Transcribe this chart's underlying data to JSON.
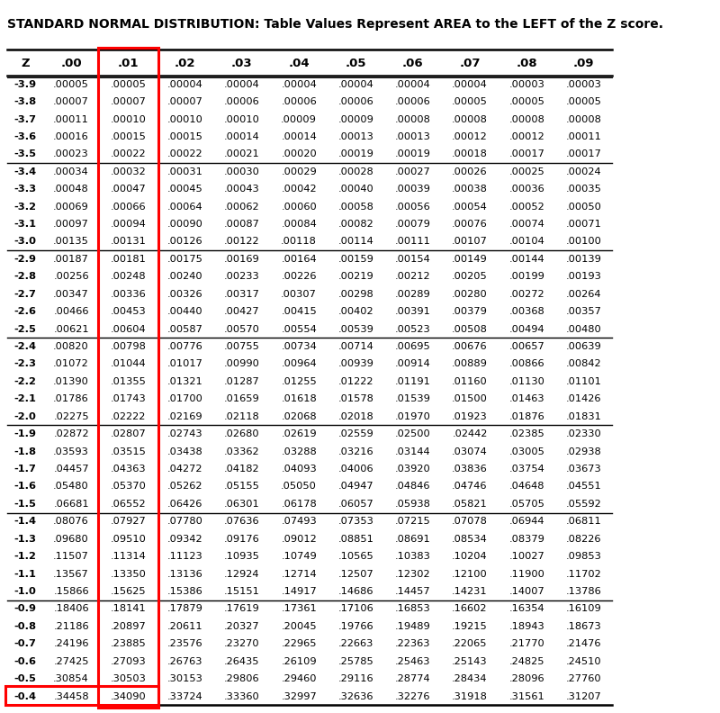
{
  "title": "STANDARD NORMAL DISTRIBUTION: Table Values Represent AREA to the LEFT of the Z score.",
  "columns": [
    "Z",
    ".00",
    ".01",
    ".02",
    ".03",
    ".04",
    ".05",
    ".06",
    ".07",
    ".08",
    ".09"
  ],
  "rows": [
    [
      "-3.9",
      ".00005",
      ".00005",
      ".00004",
      ".00004",
      ".00004",
      ".00004",
      ".00004",
      ".00004",
      ".00003",
      ".00003"
    ],
    [
      "-3.8",
      ".00007",
      ".00007",
      ".00007",
      ".00006",
      ".00006",
      ".00006",
      ".00006",
      ".00005",
      ".00005",
      ".00005"
    ],
    [
      "-3.7",
      ".00011",
      ".00010",
      ".00010",
      ".00010",
      ".00009",
      ".00009",
      ".00008",
      ".00008",
      ".00008",
      ".00008"
    ],
    [
      "-3.6",
      ".00016",
      ".00015",
      ".00015",
      ".00014",
      ".00014",
      ".00013",
      ".00013",
      ".00012",
      ".00012",
      ".00011"
    ],
    [
      "-3.5",
      ".00023",
      ".00022",
      ".00022",
      ".00021",
      ".00020",
      ".00019",
      ".00019",
      ".00018",
      ".00017",
      ".00017"
    ],
    [
      "-3.4",
      ".00034",
      ".00032",
      ".00031",
      ".00030",
      ".00029",
      ".00028",
      ".00027",
      ".00026",
      ".00025",
      ".00024"
    ],
    [
      "-3.3",
      ".00048",
      ".00047",
      ".00045",
      ".00043",
      ".00042",
      ".00040",
      ".00039",
      ".00038",
      ".00036",
      ".00035"
    ],
    [
      "-3.2",
      ".00069",
      ".00066",
      ".00064",
      ".00062",
      ".00060",
      ".00058",
      ".00056",
      ".00054",
      ".00052",
      ".00050"
    ],
    [
      "-3.1",
      ".00097",
      ".00094",
      ".00090",
      ".00087",
      ".00084",
      ".00082",
      ".00079",
      ".00076",
      ".00074",
      ".00071"
    ],
    [
      "-3.0",
      ".00135",
      ".00131",
      ".00126",
      ".00122",
      ".00118",
      ".00114",
      ".00111",
      ".00107",
      ".00104",
      ".00100"
    ],
    [
      "-2.9",
      ".00187",
      ".00181",
      ".00175",
      ".00169",
      ".00164",
      ".00159",
      ".00154",
      ".00149",
      ".00144",
      ".00139"
    ],
    [
      "-2.8",
      ".00256",
      ".00248",
      ".00240",
      ".00233",
      ".00226",
      ".00219",
      ".00212",
      ".00205",
      ".00199",
      ".00193"
    ],
    [
      "-2.7",
      ".00347",
      ".00336",
      ".00326",
      ".00317",
      ".00307",
      ".00298",
      ".00289",
      ".00280",
      ".00272",
      ".00264"
    ],
    [
      "-2.6",
      ".00466",
      ".00453",
      ".00440",
      ".00427",
      ".00415",
      ".00402",
      ".00391",
      ".00379",
      ".00368",
      ".00357"
    ],
    [
      "-2.5",
      ".00621",
      ".00604",
      ".00587",
      ".00570",
      ".00554",
      ".00539",
      ".00523",
      ".00508",
      ".00494",
      ".00480"
    ],
    [
      "-2.4",
      ".00820",
      ".00798",
      ".00776",
      ".00755",
      ".00734",
      ".00714",
      ".00695",
      ".00676",
      ".00657",
      ".00639"
    ],
    [
      "-2.3",
      ".01072",
      ".01044",
      ".01017",
      ".00990",
      ".00964",
      ".00939",
      ".00914",
      ".00889",
      ".00866",
      ".00842"
    ],
    [
      "-2.2",
      ".01390",
      ".01355",
      ".01321",
      ".01287",
      ".01255",
      ".01222",
      ".01191",
      ".01160",
      ".01130",
      ".01101"
    ],
    [
      "-2.1",
      ".01786",
      ".01743",
      ".01700",
      ".01659",
      ".01618",
      ".01578",
      ".01539",
      ".01500",
      ".01463",
      ".01426"
    ],
    [
      "-2.0",
      ".02275",
      ".02222",
      ".02169",
      ".02118",
      ".02068",
      ".02018",
      ".01970",
      ".01923",
      ".01876",
      ".01831"
    ],
    [
      "-1.9",
      ".02872",
      ".02807",
      ".02743",
      ".02680",
      ".02619",
      ".02559",
      ".02500",
      ".02442",
      ".02385",
      ".02330"
    ],
    [
      "-1.8",
      ".03593",
      ".03515",
      ".03438",
      ".03362",
      ".03288",
      ".03216",
      ".03144",
      ".03074",
      ".03005",
      ".02938"
    ],
    [
      "-1.7",
      ".04457",
      ".04363",
      ".04272",
      ".04182",
      ".04093",
      ".04006",
      ".03920",
      ".03836",
      ".03754",
      ".03673"
    ],
    [
      "-1.6",
      ".05480",
      ".05370",
      ".05262",
      ".05155",
      ".05050",
      ".04947",
      ".04846",
      ".04746",
      ".04648",
      ".04551"
    ],
    [
      "-1.5",
      ".06681",
      ".06552",
      ".06426",
      ".06301",
      ".06178",
      ".06057",
      ".05938",
      ".05821",
      ".05705",
      ".05592"
    ],
    [
      "-1.4",
      ".08076",
      ".07927",
      ".07780",
      ".07636",
      ".07493",
      ".07353",
      ".07215",
      ".07078",
      ".06944",
      ".06811"
    ],
    [
      "-1.3",
      ".09680",
      ".09510",
      ".09342",
      ".09176",
      ".09012",
      ".08851",
      ".08691",
      ".08534",
      ".08379",
      ".08226"
    ],
    [
      "-1.2",
      ".11507",
      ".11314",
      ".11123",
      ".10935",
      ".10749",
      ".10565",
      ".10383",
      ".10204",
      ".10027",
      ".09853"
    ],
    [
      "-1.1",
      ".13567",
      ".13350",
      ".13136",
      ".12924",
      ".12714",
      ".12507",
      ".12302",
      ".12100",
      ".11900",
      ".11702"
    ],
    [
      "-1.0",
      ".15866",
      ".15625",
      ".15386",
      ".15151",
      ".14917",
      ".14686",
      ".14457",
      ".14231",
      ".14007",
      ".13786"
    ],
    [
      "-0.9",
      ".18406",
      ".18141",
      ".17879",
      ".17619",
      ".17361",
      ".17106",
      ".16853",
      ".16602",
      ".16354",
      ".16109"
    ],
    [
      "-0.8",
      ".21186",
      ".20897",
      ".20611",
      ".20327",
      ".20045",
      ".19766",
      ".19489",
      ".19215",
      ".18943",
      ".18673"
    ],
    [
      "-0.7",
      ".24196",
      ".23885",
      ".23576",
      ".23270",
      ".22965",
      ".22663",
      ".22363",
      ".22065",
      ".21770",
      ".21476"
    ],
    [
      "-0.6",
      ".27425",
      ".27093",
      ".26763",
      ".26435",
      ".26109",
      ".25785",
      ".25463",
      ".25143",
      ".24825",
      ".24510"
    ],
    [
      "-0.5",
      ".30854",
      ".30503",
      ".30153",
      ".29806",
      ".29460",
      ".29116",
      ".28774",
      ".28434",
      ".28096",
      ".27760"
    ],
    [
      "-0.4",
      ".34458",
      ".34090",
      ".33724",
      ".33360",
      ".32997",
      ".32636",
      ".32276",
      ".31918",
      ".31561",
      ".31207"
    ]
  ],
  "highlight_col": 2,
  "highlight_row": 35,
  "group_separators": [
    5,
    10,
    15,
    20,
    25,
    30
  ],
  "background_color": "#ffffff",
  "title_fontsize": 10.0,
  "cell_fontsize": 8.2,
  "header_fontsize": 9.5
}
